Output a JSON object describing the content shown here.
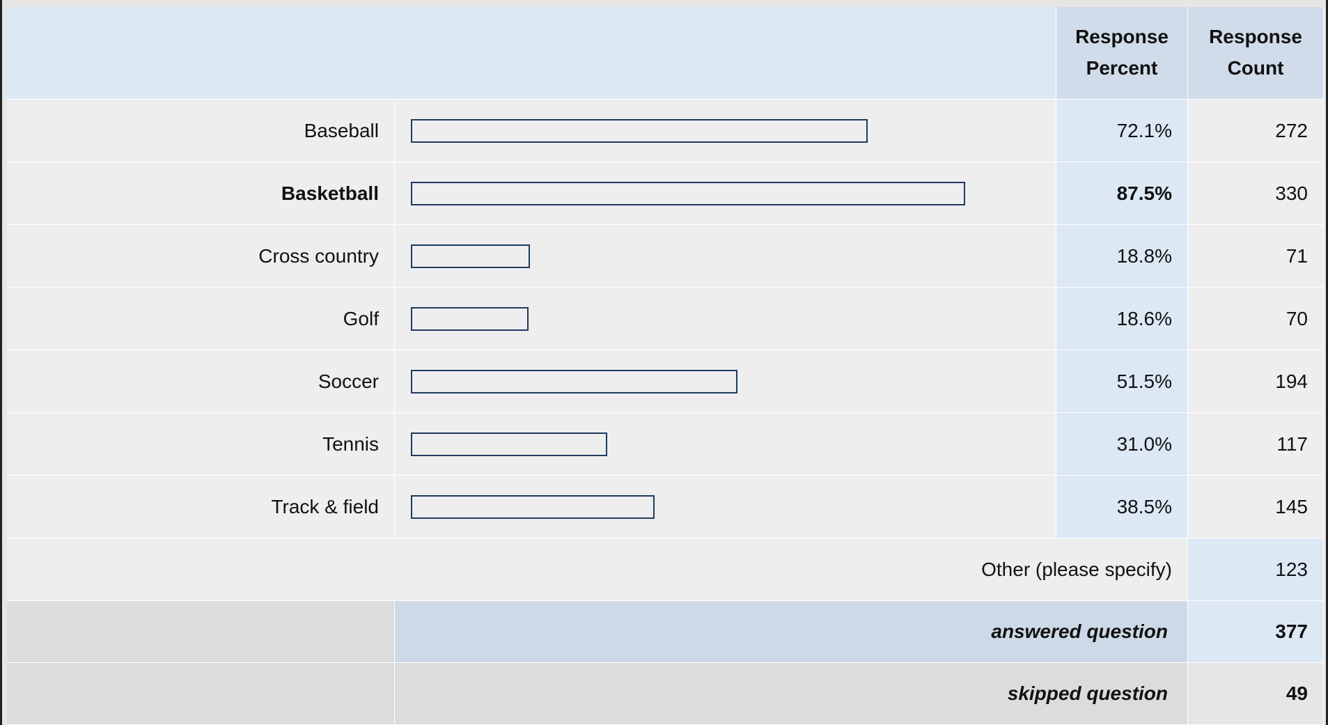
{
  "table": {
    "headers": [
      "Response Percent",
      "Response Count"
    ],
    "rows": [
      {
        "label": "Baseball",
        "percent": 72.1,
        "percent_label": "72.1%",
        "count": 272
      },
      {
        "label": "Basketball",
        "percent": 87.5,
        "percent_label": "87.5%",
        "count": 330
      },
      {
        "label": "Cross country",
        "percent": 18.8,
        "percent_label": "18.8%",
        "count": 71
      },
      {
        "label": "Golf",
        "percent": 18.6,
        "percent_label": "18.6%",
        "count": 70
      },
      {
        "label": "Soccer",
        "percent": 51.5,
        "percent_label": "51.5%",
        "count": 194
      },
      {
        "label": "Tennis",
        "percent": 31.0,
        "percent_label": "31.0%",
        "count": 117
      },
      {
        "label": "Track & field",
        "percent": 38.5,
        "percent_label": "38.5%",
        "count": 145
      }
    ],
    "other": {
      "label": "Other (please specify)",
      "count": 123
    },
    "answered": {
      "label": "answered question",
      "count": 377
    },
    "skipped": {
      "label": "skipped question",
      "count": 49
    }
  }
}
